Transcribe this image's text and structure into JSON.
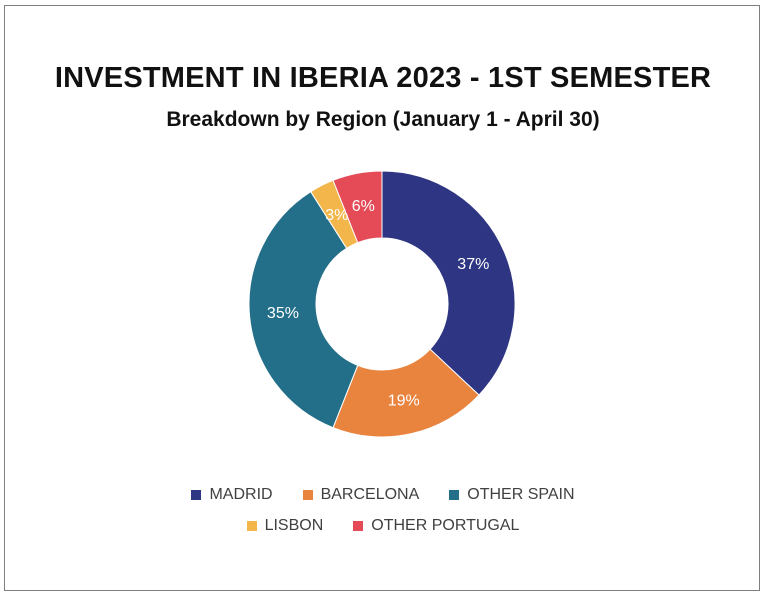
{
  "chart_data": {
    "type": "pie",
    "title": "INVESTMENT IN IBERIA 2023 - 1ST SEMESTER",
    "subtitle": "Breakdown by Region (January 1 - April 30)",
    "categories": [
      "MADRID",
      "BARCELONA",
      "OTHER SPAIN",
      "LISBON",
      "OTHER PORTUGAL"
    ],
    "values": [
      37,
      19,
      35,
      3,
      6
    ],
    "data_labels": [
      "37%",
      "19%",
      "35%",
      "3%",
      "6%"
    ],
    "colors": [
      "#2e3582",
      "#e9843f",
      "#236f89",
      "#f3b64a",
      "#e54a57"
    ],
    "donut": true,
    "legend_position": "bottom"
  }
}
